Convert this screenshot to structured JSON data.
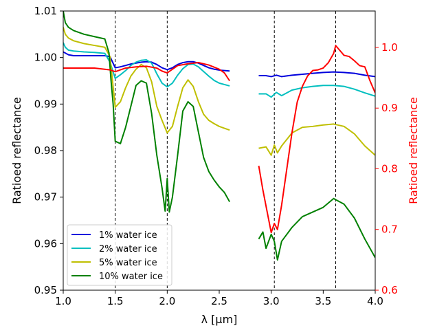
{
  "chart_data": {
    "type": "line",
    "title": "",
    "xlabel": "λ [µm]",
    "ylabel_left": "Ratioed reflectance",
    "ylabel_right": "Ratioed reflectance",
    "xlim": [
      1.0,
      4.0
    ],
    "ylim_left": [
      0.95,
      1.01
    ],
    "ylim_right": [
      0.6,
      1.06
    ],
    "grid": false,
    "legend_position": "lower-left",
    "x_ticks": [
      1.0,
      1.5,
      2.0,
      2.5,
      3.0,
      3.5,
      4.0
    ],
    "x_tick_labels": [
      "1.0",
      "1.5",
      "2.0",
      "2.5",
      "3.0",
      "3.5",
      "4.0"
    ],
    "y_left_ticks": [
      0.95,
      0.96,
      0.97,
      0.98,
      0.99,
      1.0,
      1.01
    ],
    "y_left_tick_labels": [
      "0.95",
      "0.96",
      "0.97",
      "0.98",
      "0.99",
      "1.00",
      "1.01"
    ],
    "y_right_ticks": [
      0.6,
      0.7,
      0.8,
      0.9,
      1.0
    ],
    "y_right_tick_labels": [
      "0.6",
      "0.7",
      "0.8",
      "0.9",
      "1.0"
    ],
    "right_axis_color": "#ff0000",
    "vertical_lines": [
      1.5,
      2.0,
      3.03,
      3.62
    ],
    "series": [
      {
        "name": "1% water ice",
        "color": "#0000dd",
        "axis": "left",
        "segments": [
          {
            "x": [
              1.0,
              1.05,
              1.1,
              1.2,
              1.3,
              1.4,
              1.45,
              1.5,
              1.55,
              1.6,
              1.65,
              1.7,
              1.75,
              1.8,
              1.85,
              1.9,
              1.95,
              2.0,
              2.05,
              2.1,
              2.15,
              2.2,
              2.25,
              2.3,
              2.35,
              2.4,
              2.45,
              2.5,
              2.55,
              2.6
            ],
            "y": [
              1.0012,
              1.0006,
              1.0004,
              1.0004,
              1.0004,
              1.0004,
              1.0002,
              0.9978,
              0.998,
              0.9983,
              0.9986,
              0.9988,
              0.999,
              0.9991,
              0.999,
              0.9985,
              0.9978,
              0.9974,
              0.9978,
              0.9985,
              0.9989,
              0.9991,
              0.9991,
              0.9988,
              0.9983,
              0.9978,
              0.9975,
              0.9973,
              0.9972,
              0.9971
            ]
          },
          {
            "x": [
              2.88,
              2.95,
              3.0,
              3.05,
              3.1,
              3.2,
              3.3,
              3.4,
              3.5,
              3.6,
              3.7,
              3.8,
              3.9,
              4.0
            ],
            "y": [
              0.9961,
              0.9961,
              0.9959,
              0.9962,
              0.9959,
              0.9962,
              0.9964,
              0.9966,
              0.9968,
              0.9969,
              0.9968,
              0.9966,
              0.9962,
              0.9959
            ]
          }
        ]
      },
      {
        "name": "2% water ice",
        "color": "#00bfbf",
        "axis": "left",
        "segments": [
          {
            "x": [
              1.0,
              1.02,
              1.05,
              1.1,
              1.2,
              1.3,
              1.4,
              1.45,
              1.5,
              1.55,
              1.6,
              1.65,
              1.7,
              1.75,
              1.8,
              1.85,
              1.9,
              1.95,
              2.0,
              2.05,
              2.1,
              2.15,
              2.2,
              2.25,
              2.3,
              2.35,
              2.4,
              2.45,
              2.5,
              2.55,
              2.6
            ],
            "y": [
              1.0032,
              1.0022,
              1.0016,
              1.0014,
              1.0012,
              1.0011,
              1.0009,
              0.999,
              0.9955,
              0.9963,
              0.9972,
              0.9983,
              0.999,
              0.9994,
              0.9995,
              0.9988,
              0.9965,
              0.9945,
              0.9937,
              0.9945,
              0.9962,
              0.9976,
              0.9985,
              0.9986,
              0.998,
              0.997,
              0.996,
              0.9951,
              0.9945,
              0.9942,
              0.9939
            ]
          },
          {
            "x": [
              2.88,
              2.95,
              3.0,
              3.05,
              3.1,
              3.2,
              3.3,
              3.4,
              3.5,
              3.6,
              3.7,
              3.8,
              3.9,
              4.0
            ],
            "y": [
              0.9922,
              0.9922,
              0.9915,
              0.9925,
              0.9918,
              0.993,
              0.9935,
              0.9938,
              0.994,
              0.994,
              0.9938,
              0.9932,
              0.9924,
              0.9917
            ]
          }
        ]
      },
      {
        "name": "5% water ice",
        "color": "#bfbf00",
        "axis": "left",
        "segments": [
          {
            "x": [
              1.0,
              1.02,
              1.05,
              1.1,
              1.2,
              1.3,
              1.4,
              1.45,
              1.5,
              1.55,
              1.6,
              1.65,
              1.7,
              1.75,
              1.8,
              1.85,
              1.9,
              1.95,
              2.0,
              2.05,
              2.1,
              2.15,
              2.2,
              2.25,
              2.3,
              2.35,
              2.4,
              2.45,
              2.5,
              2.55,
              2.6
            ],
            "y": [
              1.0065,
              1.005,
              1.0042,
              1.0036,
              1.003,
              1.0026,
              1.0022,
              1.0002,
              0.9893,
              0.9905,
              0.9935,
              0.996,
              0.9975,
              0.9985,
              0.9978,
              0.9948,
              0.9895,
              0.9865,
              0.9838,
              0.9852,
              0.9895,
              0.9935,
              0.9952,
              0.9938,
              0.9905,
              0.9878,
              0.9865,
              0.9858,
              0.9852,
              0.9848,
              0.9844
            ]
          },
          {
            "x": [
              2.88,
              2.95,
              3.0,
              3.03,
              3.06,
              3.1,
              3.2,
              3.3,
              3.4,
              3.5,
              3.6,
              3.7,
              3.8,
              3.9,
              4.0
            ],
            "y": [
              0.9805,
              0.9808,
              0.979,
              0.9812,
              0.9795,
              0.981,
              0.9838,
              0.985,
              0.9852,
              0.9855,
              0.9857,
              0.9852,
              0.9836,
              0.981,
              0.979
            ]
          }
        ]
      },
      {
        "name": "10% water ice",
        "color": "#008000",
        "axis": "left",
        "segments": [
          {
            "x": [
              1.0,
              1.02,
              1.05,
              1.1,
              1.2,
              1.3,
              1.4,
              1.44,
              1.46,
              1.48,
              1.5,
              1.55,
              1.6,
              1.65,
              1.7,
              1.75,
              1.8,
              1.85,
              1.9,
              1.95,
              1.98,
              2.0,
              2.02,
              2.05,
              2.1,
              2.15,
              2.2,
              2.25,
              2.3,
              2.35,
              2.4,
              2.45,
              2.5,
              2.55,
              2.6
            ],
            "y": [
              1.01,
              1.0075,
              1.0065,
              1.0058,
              1.005,
              1.0045,
              1.004,
              1.001,
              0.995,
              0.99,
              0.982,
              0.9815,
              0.985,
              0.9895,
              0.994,
              0.995,
              0.9945,
              0.988,
              0.979,
              0.972,
              0.967,
              0.974,
              0.9668,
              0.97,
              0.979,
              0.9885,
              0.9905,
              0.9895,
              0.984,
              0.9785,
              0.9755,
              0.9737,
              0.9722,
              0.971,
              0.969
            ]
          },
          {
            "x": [
              2.88,
              2.92,
              2.95,
              3.0,
              3.03,
              3.06,
              3.1,
              3.15,
              3.2,
              3.3,
              3.4,
              3.5,
              3.6,
              3.7,
              3.8,
              3.9,
              4.0
            ],
            "y": [
              0.961,
              0.9625,
              0.959,
              0.962,
              0.9605,
              0.9565,
              0.9605,
              0.962,
              0.9635,
              0.9658,
              0.9668,
              0.9678,
              0.9697,
              0.9685,
              0.9655,
              0.961,
              0.957
            ]
          }
        ]
      },
      {
        "name": "",
        "color": "#ff0000",
        "axis": "right",
        "segments": [
          {
            "x": [
              1.0,
              1.1,
              1.2,
              1.3,
              1.4,
              1.45,
              1.5,
              1.55,
              1.6,
              1.7,
              1.8,
              1.9,
              1.95,
              2.0,
              2.05,
              2.1,
              2.2,
              2.3,
              2.4,
              2.5,
              2.55,
              2.6
            ],
            "y": [
              0.966,
              0.966,
              0.966,
              0.966,
              0.964,
              0.963,
              0.96,
              0.963,
              0.966,
              0.968,
              0.969,
              0.966,
              0.961,
              0.958,
              0.964,
              0.97,
              0.973,
              0.975,
              0.971,
              0.964,
              0.958,
              0.945
            ]
          },
          {
            "x": [
              2.88,
              2.92,
              2.96,
              3.0,
              3.03,
              3.06,
              3.1,
              3.15,
              3.2,
              3.25,
              3.3,
              3.35,
              3.4,
              3.45,
              3.5,
              3.55,
              3.6,
              3.62,
              3.65,
              3.7,
              3.75,
              3.8,
              3.85,
              3.9,
              3.95,
              4.0
            ],
            "y": [
              0.805,
              0.765,
              0.73,
              0.695,
              0.71,
              0.7,
              0.74,
              0.8,
              0.86,
              0.91,
              0.936,
              0.953,
              0.962,
              0.963,
              0.966,
              0.975,
              0.99,
              1.003,
              0.997,
              0.987,
              0.985,
              0.978,
              0.97,
              0.968,
              0.945,
              0.925
            ]
          }
        ]
      }
    ],
    "legend": [
      "1% water ice",
      "2% water ice",
      "5% water ice",
      "10% water ice"
    ]
  }
}
